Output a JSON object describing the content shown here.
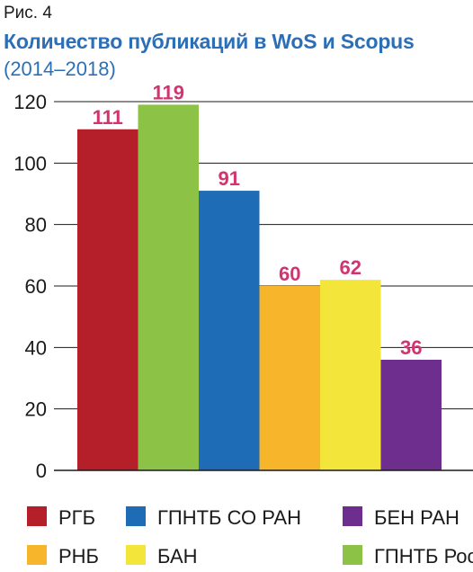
{
  "figure_label": "Рис. 4",
  "chart_data": {
    "type": "bar",
    "title": "Количество публикаций в WoS и Scopus",
    "subtitle": "(2014–2018)",
    "categories": [
      "РГБ",
      "ГПНТБ России",
      "ГПНТБ СО РАН",
      "РНБ",
      "БАН",
      "БЕН РАН"
    ],
    "values": [
      111,
      119,
      91,
      60,
      62,
      36
    ],
    "value_labels": [
      "111",
      "119",
      "91",
      "60",
      "62",
      "36"
    ],
    "colors": [
      "#b51f2a",
      "#8cc346",
      "#1e6bb6",
      "#f7b52c",
      "#f3e53a",
      "#6d2e8e"
    ],
    "value_label_color": "#d1346f",
    "ylim": [
      0,
      120
    ],
    "yticks": [
      0,
      20,
      40,
      60,
      80,
      100,
      120
    ],
    "ytick_labels": [
      "0",
      "20",
      "40",
      "60",
      "80",
      "100",
      "120"
    ],
    "grid": true,
    "legend_position": "bottom",
    "legend": [
      {
        "label": "РГБ",
        "color": "#b51f2a"
      },
      {
        "label": "ГПНТБ СО РАН",
        "color": "#1e6bb6"
      },
      {
        "label": "БЕН РАН",
        "color": "#6d2e8e"
      },
      {
        "label": "РНБ",
        "color": "#f7b52c"
      },
      {
        "label": "БАН",
        "color": "#f3e53a"
      },
      {
        "label": "ГПНТБ России",
        "color": "#8cc346"
      }
    ]
  }
}
